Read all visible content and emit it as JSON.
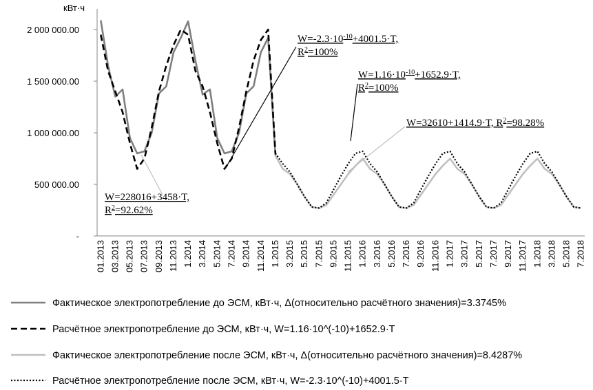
{
  "chart_data": {
    "type": "line",
    "y_axis_label": "кВт·ч",
    "categories": [
      "01.2013",
      null,
      "03.2013",
      null,
      "05.2013",
      null,
      "07.2013",
      null,
      "09.2013",
      null,
      "11.2013",
      null,
      "1.2014",
      null,
      "3.2014",
      null,
      "5.2014",
      null,
      "7.2014",
      null,
      "9.2014",
      null,
      "11.2014",
      null,
      "1.2015",
      null,
      "3.2015",
      null,
      "5.2015",
      null,
      "7.2015",
      null,
      "9.2015",
      null,
      "11.2015",
      null,
      "1.2016",
      null,
      "3.2016",
      null,
      "5.2016",
      null,
      "7.2016",
      null,
      "9.2016",
      null,
      "11.2016",
      null,
      "1.2017",
      null,
      "3.2017",
      null,
      "5.2017",
      null,
      "7.2017",
      null,
      "9.2017",
      null,
      "11.2017",
      null,
      "1.2018",
      null,
      "3.2018",
      null,
      "5.2018",
      null,
      "7.2018"
    ],
    "series": [
      {
        "name": "Фактическое электропотребление до ЭСМ, кВт·ч, Δ(относительно расчётного значения)=3.3745%",
        "color": "#7f7f7f",
        "style": "solid",
        "values": [
          2090000,
          1650000,
          1350000,
          1420000,
          950000,
          800000,
          820000,
          1000000,
          1380000,
          1450000,
          1780000,
          1920000,
          2080000,
          1700000,
          1370000,
          1420000,
          950000,
          800000,
          820000,
          1000000,
          1380000,
          1450000,
          1780000,
          1920000,
          780000,
          null,
          null,
          null,
          null,
          null,
          null,
          null,
          null,
          null,
          null,
          null,
          null,
          null,
          null,
          null,
          null,
          null,
          null,
          null,
          null,
          null,
          null,
          null,
          null,
          null,
          null,
          null,
          null,
          null,
          null,
          null,
          null,
          null,
          null,
          null,
          null,
          null,
          null,
          null,
          null,
          null,
          null
        ]
      },
      {
        "name": "Расчётное электропотребление до ЭСМ, кВт·ч, W=1.16·10^(-10)+1652.9·T",
        "color": "#000000",
        "style": "dashed",
        "values": [
          1950000,
          1600000,
          1400000,
          1200000,
          900000,
          650000,
          750000,
          1050000,
          1400000,
          1650000,
          1850000,
          2000000,
          1950000,
          1600000,
          1450000,
          1200000,
          900000,
          650000,
          750000,
          1050000,
          1400000,
          1700000,
          1900000,
          2000000,
          800000,
          null,
          null,
          null,
          null,
          null,
          null,
          null,
          null,
          null,
          null,
          null,
          null,
          null,
          null,
          null,
          null,
          null,
          null,
          null,
          null,
          null,
          null,
          null,
          null,
          null,
          null,
          null,
          null,
          null,
          null,
          null,
          null,
          null,
          null,
          null,
          null,
          null,
          null,
          null,
          null,
          null,
          null
        ]
      },
      {
        "name": "Фактическое электропотребление после ЭСМ, кВт·ч, Δ(относительно расчётного значения)=8.4287%",
        "color": "#bfbfbf",
        "style": "solid",
        "values": [
          null,
          null,
          null,
          null,
          null,
          null,
          null,
          null,
          null,
          null,
          null,
          null,
          null,
          null,
          null,
          null,
          null,
          null,
          null,
          null,
          null,
          null,
          null,
          null,
          780000,
          650000,
          600000,
          500000,
          380000,
          280000,
          270000,
          300000,
          400000,
          500000,
          600000,
          680000,
          750000,
          650000,
          600000,
          500000,
          380000,
          280000,
          270000,
          300000,
          400000,
          500000,
          600000,
          680000,
          750000,
          650000,
          600000,
          500000,
          380000,
          280000,
          270000,
          300000,
          400000,
          500000,
          600000,
          680000,
          750000,
          650000,
          600000,
          500000,
          380000,
          280000,
          270000
        ]
      },
      {
        "name": "Расчётное электропотребление после ЭСМ, кВт·ч, W=-2.3·10^(-10)+4001.5·T",
        "color": "#000000",
        "style": "dotted",
        "values": [
          null,
          null,
          null,
          null,
          null,
          null,
          null,
          null,
          null,
          null,
          null,
          null,
          null,
          null,
          null,
          null,
          null,
          null,
          null,
          null,
          null,
          null,
          null,
          null,
          800000,
          700000,
          620000,
          500000,
          380000,
          280000,
          270000,
          320000,
          450000,
          580000,
          700000,
          800000,
          820000,
          700000,
          620000,
          500000,
          380000,
          280000,
          270000,
          320000,
          450000,
          580000,
          700000,
          800000,
          820000,
          700000,
          620000,
          500000,
          380000,
          280000,
          270000,
          320000,
          450000,
          580000,
          700000,
          800000,
          820000,
          700000,
          620000,
          500000,
          380000,
          280000,
          270000
        ]
      }
    ],
    "ylim": [
      0,
      2200000
    ],
    "yticks": [
      {
        "value": 0,
        "label": "-"
      },
      {
        "value": 500000,
        "label": "500 000.00"
      },
      {
        "value": 1000000,
        "label": "1 000 000.00"
      },
      {
        "value": 1500000,
        "label": "1 500 000.00"
      },
      {
        "value": 2000000,
        "label": "2 000 000.00"
      }
    ],
    "grid": false,
    "legend": "bottom",
    "annotations": [
      {
        "lines": [
          [
            {
              "t": "W=228016+3458·T,"
            }
          ],
          [
            {
              "t": "R"
            },
            {
              "t": "2",
              "sup": true
            },
            {
              "t": "=92.62%"
            }
          ]
        ]
      },
      {
        "lines": [
          [
            {
              "t": "W=-2.3·10"
            },
            {
              "t": "-10",
              "sup": true
            },
            {
              "t": "+4001.5·T,"
            }
          ],
          [
            {
              "t": "R"
            },
            {
              "t": "2",
              "sup": true
            },
            {
              "t": "=100%"
            }
          ]
        ]
      },
      {
        "lines": [
          [
            {
              "t": "W=1.16·10"
            },
            {
              "t": "-10",
              "sup": true
            },
            {
              "t": "+1652.9·T,"
            }
          ],
          [
            {
              "t": "R"
            },
            {
              "t": "2",
              "sup": true
            },
            {
              "t": "=100%"
            }
          ]
        ]
      },
      {
        "lines": [
          [
            {
              "t": "W=32610+1414.9·T, R"
            },
            {
              "t": "2",
              "sup": true
            },
            {
              "t": "=98.28%"
            }
          ]
        ]
      }
    ]
  }
}
